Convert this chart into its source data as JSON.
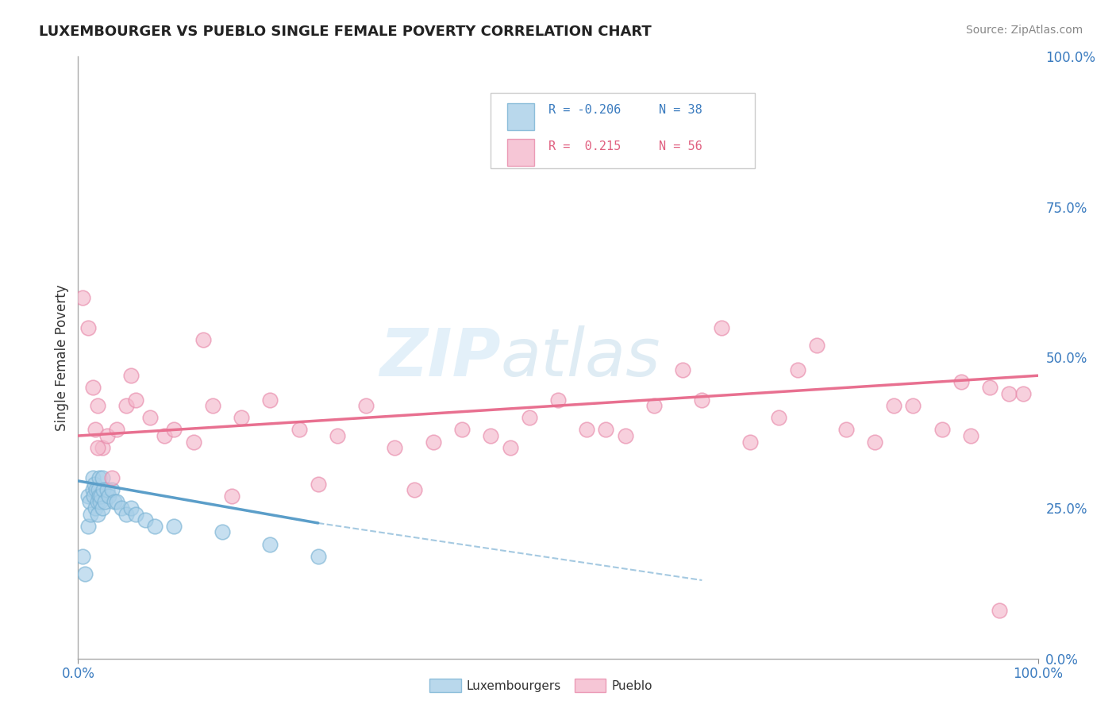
{
  "title": "LUXEMBOURGER VS PUEBLO SINGLE FEMALE POVERTY CORRELATION CHART",
  "source": "Source: ZipAtlas.com",
  "ylabel": "Single Female Poverty",
  "xlim": [
    0,
    1
  ],
  "ylim": [
    0,
    1
  ],
  "xtick_labels": [
    "0.0%",
    "100.0%"
  ],
  "ytick_labels": [
    "0.0%",
    "25.0%",
    "50.0%",
    "75.0%",
    "100.0%"
  ],
  "ytick_values": [
    0.0,
    0.25,
    0.5,
    0.75,
    1.0
  ],
  "blue_color": "#a8cfe8",
  "pink_color": "#f4b8cc",
  "blue_edge_color": "#7ab3d4",
  "pink_edge_color": "#e88aaa",
  "blue_line_color": "#5b9ec9",
  "pink_line_color": "#e87090",
  "grid_color": "#cccccc",
  "luxembourgers_x": [
    0.005,
    0.007,
    0.01,
    0.01,
    0.012,
    0.013,
    0.015,
    0.015,
    0.016,
    0.017,
    0.018,
    0.019,
    0.02,
    0.02,
    0.021,
    0.022,
    0.022,
    0.023,
    0.024,
    0.025,
    0.025,
    0.026,
    0.028,
    0.03,
    0.032,
    0.035,
    0.038,
    0.04,
    0.045,
    0.05,
    0.055,
    0.06,
    0.07,
    0.08,
    0.1,
    0.15,
    0.2,
    0.25
  ],
  "luxembourgers_y": [
    0.17,
    0.14,
    0.27,
    0.22,
    0.26,
    0.24,
    0.3,
    0.28,
    0.27,
    0.29,
    0.25,
    0.28,
    0.26,
    0.24,
    0.28,
    0.27,
    0.3,
    0.26,
    0.27,
    0.25,
    0.3,
    0.28,
    0.26,
    0.28,
    0.27,
    0.28,
    0.26,
    0.26,
    0.25,
    0.24,
    0.25,
    0.24,
    0.23,
    0.22,
    0.22,
    0.21,
    0.19,
    0.17
  ],
  "pueblo_x": [
    0.005,
    0.01,
    0.015,
    0.018,
    0.02,
    0.025,
    0.03,
    0.04,
    0.05,
    0.06,
    0.075,
    0.09,
    0.1,
    0.12,
    0.14,
    0.17,
    0.2,
    0.23,
    0.27,
    0.3,
    0.33,
    0.37,
    0.4,
    0.43,
    0.47,
    0.5,
    0.53,
    0.57,
    0.6,
    0.63,
    0.67,
    0.7,
    0.73,
    0.77,
    0.8,
    0.83,
    0.87,
    0.9,
    0.93,
    0.95,
    0.97,
    0.02,
    0.035,
    0.055,
    0.13,
    0.16,
    0.25,
    0.35,
    0.45,
    0.55,
    0.65,
    0.75,
    0.85,
    0.92,
    0.96,
    0.985
  ],
  "pueblo_y": [
    0.6,
    0.55,
    0.45,
    0.38,
    0.42,
    0.35,
    0.37,
    0.38,
    0.42,
    0.43,
    0.4,
    0.37,
    0.38,
    0.36,
    0.42,
    0.4,
    0.43,
    0.38,
    0.37,
    0.42,
    0.35,
    0.36,
    0.38,
    0.37,
    0.4,
    0.43,
    0.38,
    0.37,
    0.42,
    0.48,
    0.55,
    0.36,
    0.4,
    0.52,
    0.38,
    0.36,
    0.42,
    0.38,
    0.37,
    0.45,
    0.44,
    0.35,
    0.3,
    0.47,
    0.53,
    0.27,
    0.29,
    0.28,
    0.35,
    0.38,
    0.43,
    0.48,
    0.42,
    0.46,
    0.08,
    0.44
  ],
  "lux_line_x_start": 0.0,
  "lux_line_x_solid_end": 0.25,
  "lux_line_x_dash_end": 0.65,
  "lux_line_y_start": 0.295,
  "lux_line_y_solid_end": 0.225,
  "lux_line_y_dash_end": 0.13,
  "pueblo_line_x_start": 0.0,
  "pueblo_line_x_end": 1.0,
  "pueblo_line_y_start": 0.37,
  "pueblo_line_y_end": 0.47
}
